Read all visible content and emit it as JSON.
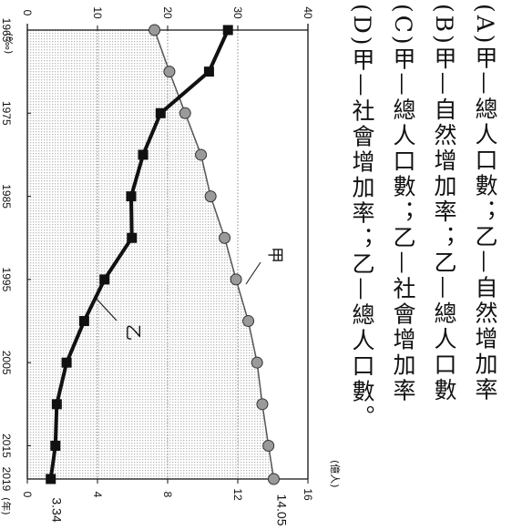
{
  "options": [
    {
      "text": "(A)甲—總人口數；乙—自然增加率"
    },
    {
      "text": "(B)甲—自然增加率；乙—總人口數"
    },
    {
      "text": "(C)甲—總人口數；乙—社會增加率"
    },
    {
      "text": "(D)甲—社會增加率；乙—總人口數。"
    }
  ],
  "chart_data": {
    "type": "line",
    "x": [
      1965,
      1970,
      1975,
      1980,
      1985,
      1990,
      1995,
      2000,
      2005,
      2010,
      2015,
      2019
    ],
    "x_ticks": [
      "1965",
      "1975",
      "1985",
      "1995",
      "2005",
      "2015",
      "2019"
    ],
    "x_unit": "(年)",
    "left_axis": {
      "unit": "(‰)",
      "ticks": [
        "0",
        "10",
        "20",
        "30",
        "40"
      ],
      "range": [
        0,
        40
      ]
    },
    "right_axis": {
      "unit": "(億人)",
      "ticks": [
        "0",
        "4",
        "8",
        "12",
        "16"
      ],
      "range": [
        0,
        16
      ]
    },
    "series": [
      {
        "name": "甲",
        "axis": "right",
        "marker": "circle",
        "color": "#9a9a9a",
        "values": [
          7.25,
          8.1,
          9.0,
          9.9,
          10.45,
          11.25,
          11.9,
          12.6,
          13.1,
          13.4,
          13.75,
          14.05
        ],
        "end_label": "14.05"
      },
      {
        "name": "乙",
        "axis": "left",
        "marker": "square",
        "color": "#111111",
        "values": [
          28.6,
          25.9,
          19.0,
          16.5,
          14.8,
          14.9,
          11.0,
          8.1,
          5.6,
          4.2,
          4.0,
          3.34
        ],
        "end_label": "3.34"
      }
    ]
  }
}
